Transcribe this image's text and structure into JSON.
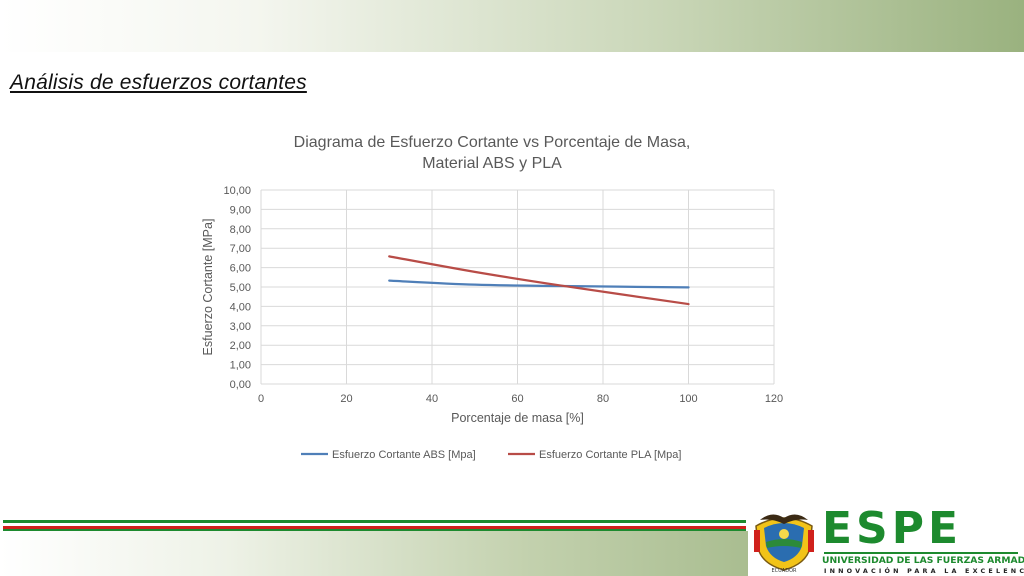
{
  "slide": {
    "title": "Análisis de esfuerzos cortantes"
  },
  "colors": {
    "abs": "#4f7fb8",
    "pla": "#b84c47",
    "grid": "#d9d9d9",
    "text": "#595959",
    "brand_green": "#1d8a2e",
    "flag_red": "#d0211c"
  },
  "logo": {
    "shield_icon": "espe-shield-icon",
    "shield_caption": "ECUADOR",
    "letters": "ESPE",
    "university": "UNIVERSIDAD DE LAS FUERZAS ARMADAS",
    "motto": "INNOVACIÓN PARA LA EXCELENCIA"
  },
  "chart_data": {
    "type": "line",
    "title": "Diagrama de Esfuerzo Cortante vs Porcentaje de Masa, Material ABS y PLA",
    "title_lines": [
      "Diagrama de Esfuerzo Cortante vs Porcentaje de Masa,",
      "Material ABS y PLA"
    ],
    "xlabel": "Porcentaje de masa [%]",
    "ylabel": "Esfuerzo Cortante [MPa]",
    "xlim": [
      0,
      120
    ],
    "ylim": [
      0,
      10
    ],
    "x_ticks": [
      "0",
      "20",
      "40",
      "60",
      "80",
      "100",
      "120"
    ],
    "y_ticks": [
      "0,00",
      "1,00",
      "2,00",
      "3,00",
      "4,00",
      "5,00",
      "6,00",
      "7,00",
      "8,00",
      "9,00",
      "10,00"
    ],
    "grid": true,
    "legend_position": "bottom",
    "series": [
      {
        "name": "Esfuerzo Cortante ABS [Mpa]",
        "x": [
          30,
          50,
          70,
          100
        ],
        "y": [
          5.33,
          5.12,
          5.05,
          4.98
        ]
      },
      {
        "name": "Esfuerzo Cortante PLA [Mpa]",
        "x": [
          30,
          50,
          70,
          100
        ],
        "y": [
          6.58,
          5.78,
          5.08,
          4.12
        ]
      }
    ]
  }
}
